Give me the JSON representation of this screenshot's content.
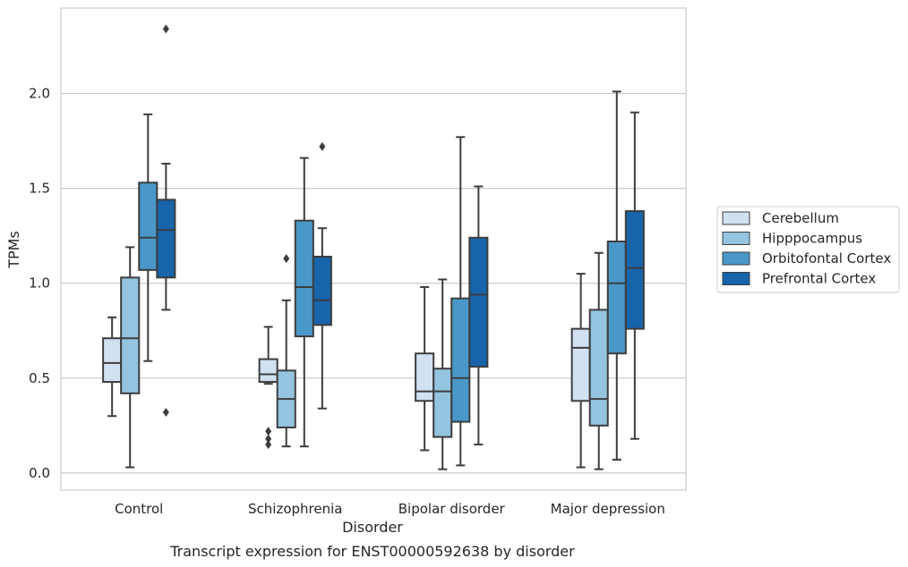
{
  "chart_data": {
    "type": "box",
    "caption": "Transcript expression for ENST00000592638 by disorder",
    "xlabel": "Disorder",
    "ylabel": "TPMs",
    "ylim": [
      -0.09,
      2.45
    ],
    "yticks": [
      "0.0",
      "0.5",
      "1.0",
      "1.5",
      "2.0"
    ],
    "grid": "horizontal",
    "legend_position": "right",
    "categories": [
      "Control",
      "Schizophrenia",
      "Bipolar disorder",
      "Major depression"
    ],
    "series": [
      {
        "name": "Cerebellum",
        "color": "#d0e1f2",
        "boxes": [
          {
            "whislo": 0.3,
            "q1": 0.48,
            "med": 0.58,
            "q3": 0.71,
            "whishi": 0.82,
            "fliers": []
          },
          {
            "whislo": 0.47,
            "q1": 0.48,
            "med": 0.52,
            "q3": 0.6,
            "whishi": 0.77,
            "fliers": [
              0.22,
              0.18,
              0.15
            ]
          },
          {
            "whislo": 0.12,
            "q1": 0.38,
            "med": 0.43,
            "q3": 0.63,
            "whishi": 0.98,
            "fliers": []
          },
          {
            "whislo": 0.03,
            "q1": 0.38,
            "med": 0.66,
            "q3": 0.76,
            "whishi": 1.05,
            "fliers": []
          }
        ]
      },
      {
        "name": "Hipppocampus",
        "color": "#94c4df",
        "boxes": [
          {
            "whislo": 0.03,
            "q1": 0.42,
            "med": 0.71,
            "q3": 1.03,
            "whishi": 1.19,
            "fliers": []
          },
          {
            "whislo": 0.14,
            "q1": 0.24,
            "med": 0.39,
            "q3": 0.54,
            "whishi": 0.91,
            "fliers": [
              1.13
            ]
          },
          {
            "whislo": 0.02,
            "q1": 0.19,
            "med": 0.43,
            "q3": 0.55,
            "whishi": 1.02,
            "fliers": []
          },
          {
            "whislo": 0.02,
            "q1": 0.25,
            "med": 0.39,
            "q3": 0.86,
            "whishi": 1.16,
            "fliers": []
          }
        ]
      },
      {
        "name": "Orbitofontal Cortex",
        "color": "#4a98c9",
        "boxes": [
          {
            "whislo": 0.59,
            "q1": 1.07,
            "med": 1.24,
            "q3": 1.53,
            "whishi": 1.89,
            "fliers": []
          },
          {
            "whislo": 0.14,
            "q1": 0.72,
            "med": 0.98,
            "q3": 1.33,
            "whishi": 1.66,
            "fliers": []
          },
          {
            "whislo": 0.04,
            "q1": 0.27,
            "med": 0.5,
            "q3": 0.92,
            "whishi": 1.77,
            "fliers": []
          },
          {
            "whislo": 0.07,
            "q1": 0.63,
            "med": 1.0,
            "q3": 1.22,
            "whishi": 2.01,
            "fliers": []
          }
        ]
      },
      {
        "name": "Prefrontal Cortex",
        "color": "#1764ab",
        "boxes": [
          {
            "whislo": 0.86,
            "q1": 1.03,
            "med": 1.28,
            "q3": 1.44,
            "whishi": 1.63,
            "fliers": [
              2.34,
              0.32
            ]
          },
          {
            "whislo": 0.34,
            "q1": 0.78,
            "med": 0.91,
            "q3": 1.14,
            "whishi": 1.29,
            "fliers": [
              1.72
            ]
          },
          {
            "whislo": 0.15,
            "q1": 0.56,
            "med": 0.94,
            "q3": 1.24,
            "whishi": 1.51,
            "fliers": []
          },
          {
            "whislo": 0.18,
            "q1": 0.76,
            "med": 1.08,
            "q3": 1.38,
            "whishi": 1.9,
            "fliers": []
          }
        ]
      }
    ]
  }
}
